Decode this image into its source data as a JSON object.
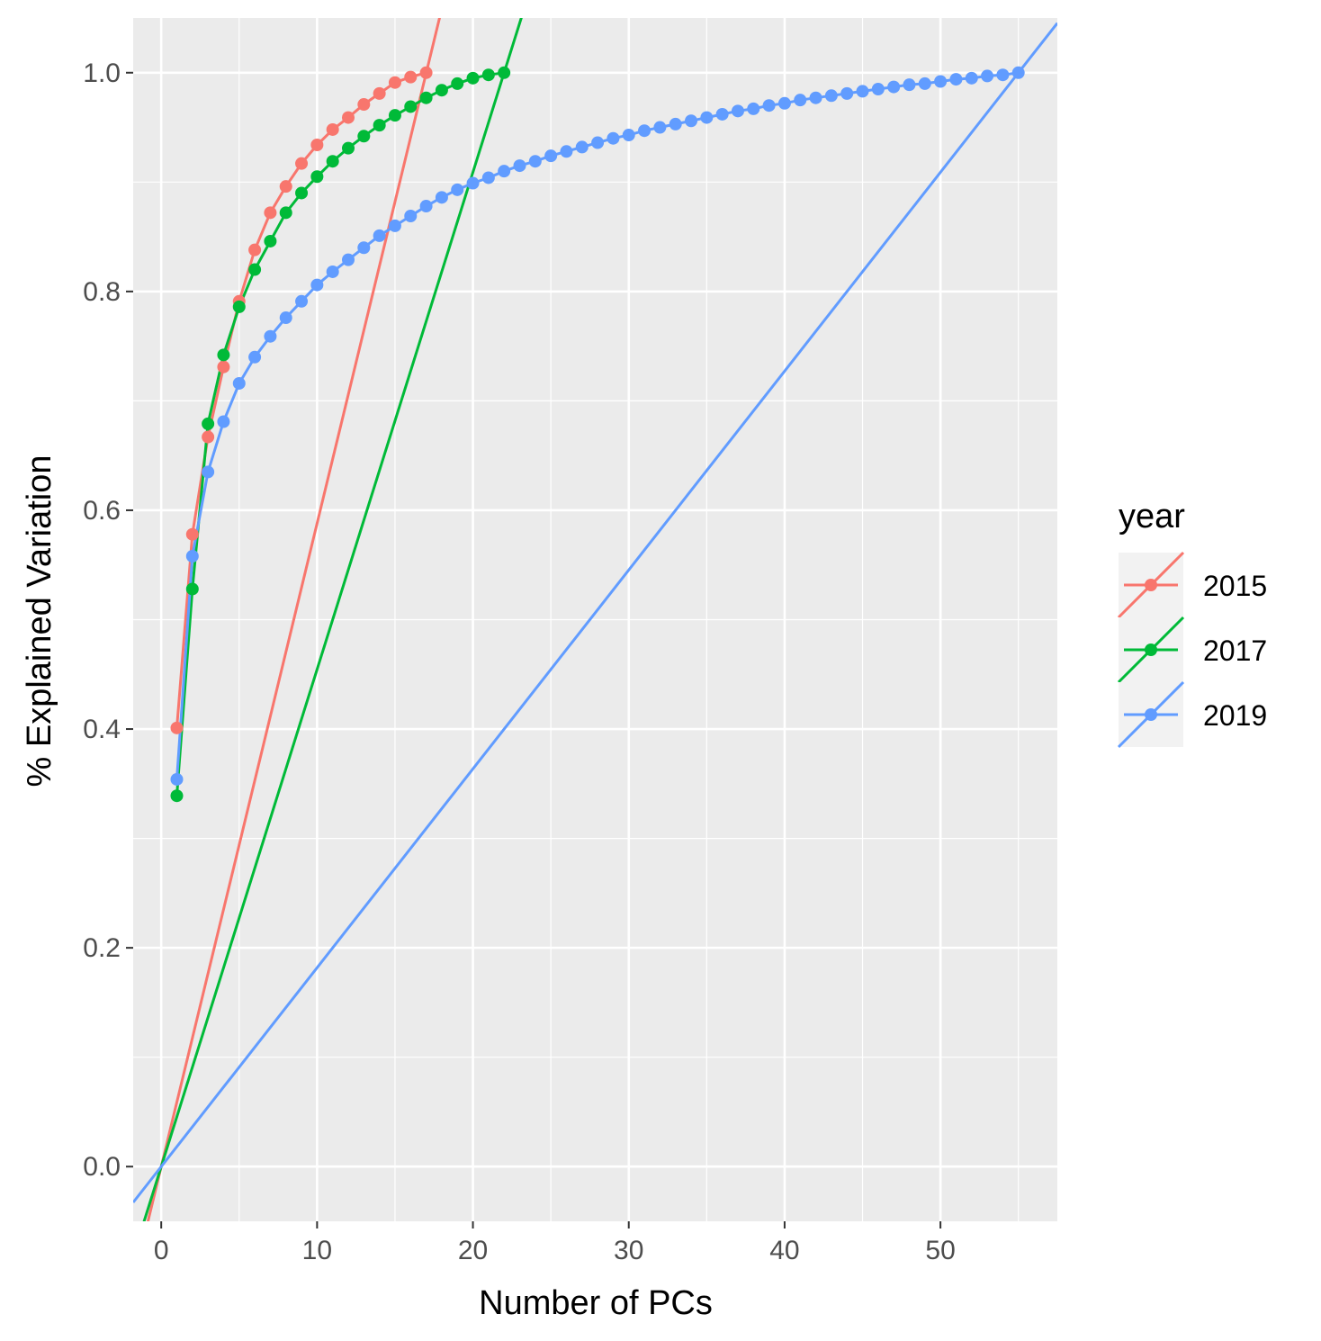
{
  "chart_data": {
    "type": "line",
    "xlabel": "Number of PCs",
    "ylabel": "% Explained Variation",
    "xlim": [
      -1.8,
      57.5
    ],
    "ylim": [
      -0.05,
      1.05
    ],
    "x_ticks": [
      0,
      10,
      20,
      30,
      40,
      50
    ],
    "y_ticks": [
      0.0,
      0.2,
      0.4,
      0.6,
      0.8,
      1.0
    ],
    "x_tick_labels": [
      "0",
      "10",
      "20",
      "30",
      "40",
      "50"
    ],
    "y_tick_labels": [
      "0.0",
      "0.2",
      "0.4",
      "0.6",
      "0.8",
      "1.0"
    ],
    "grid": true,
    "legend": {
      "title": "year",
      "position": "right"
    },
    "series": [
      {
        "name": "2015",
        "color": "#F8766D",
        "x": [
          1,
          2,
          3,
          4,
          5,
          6,
          7,
          8,
          9,
          10,
          11,
          12,
          13,
          14,
          15,
          16,
          17
        ],
        "values": [
          0.401,
          0.578,
          0.667,
          0.731,
          0.791,
          0.838,
          0.872,
          0.896,
          0.917,
          0.934,
          0.948,
          0.959,
          0.971,
          0.981,
          0.991,
          0.996,
          1.0
        ],
        "reference_line": {
          "intercept": 0.0,
          "slope": 0.0588
        }
      },
      {
        "name": "2017",
        "color": "#00BA38",
        "x": [
          1,
          2,
          3,
          4,
          5,
          6,
          7,
          8,
          9,
          10,
          11,
          12,
          13,
          14,
          15,
          16,
          17,
          18,
          19,
          20,
          21,
          22
        ],
        "values": [
          0.339,
          0.528,
          0.679,
          0.742,
          0.786,
          0.82,
          0.846,
          0.872,
          0.89,
          0.905,
          0.919,
          0.931,
          0.942,
          0.952,
          0.961,
          0.969,
          0.977,
          0.984,
          0.99,
          0.995,
          0.998,
          1.0
        ],
        "reference_line": {
          "intercept": 0.0,
          "slope": 0.04545
        }
      },
      {
        "name": "2019",
        "color": "#619CFF",
        "x": [
          1,
          2,
          3,
          4,
          5,
          6,
          7,
          8,
          9,
          10,
          11,
          12,
          13,
          14,
          15,
          16,
          17,
          18,
          19,
          20,
          21,
          22,
          23,
          24,
          25,
          26,
          27,
          28,
          29,
          30,
          31,
          32,
          33,
          34,
          35,
          36,
          37,
          38,
          39,
          40,
          41,
          42,
          43,
          44,
          45,
          46,
          47,
          48,
          49,
          50,
          51,
          52,
          53,
          54,
          55
        ],
        "values": [
          0.354,
          0.558,
          0.635,
          0.681,
          0.716,
          0.74,
          0.759,
          0.776,
          0.791,
          0.806,
          0.818,
          0.829,
          0.84,
          0.851,
          0.86,
          0.869,
          0.878,
          0.886,
          0.893,
          0.899,
          0.904,
          0.91,
          0.915,
          0.919,
          0.924,
          0.928,
          0.932,
          0.936,
          0.94,
          0.943,
          0.947,
          0.95,
          0.953,
          0.956,
          0.959,
          0.962,
          0.965,
          0.967,
          0.97,
          0.972,
          0.975,
          0.977,
          0.979,
          0.981,
          0.983,
          0.985,
          0.987,
          0.989,
          0.99,
          0.992,
          0.994,
          0.995,
          0.997,
          0.998,
          1.0
        ],
        "reference_line": {
          "intercept": 0.0,
          "slope": 0.01818
        }
      }
    ]
  }
}
